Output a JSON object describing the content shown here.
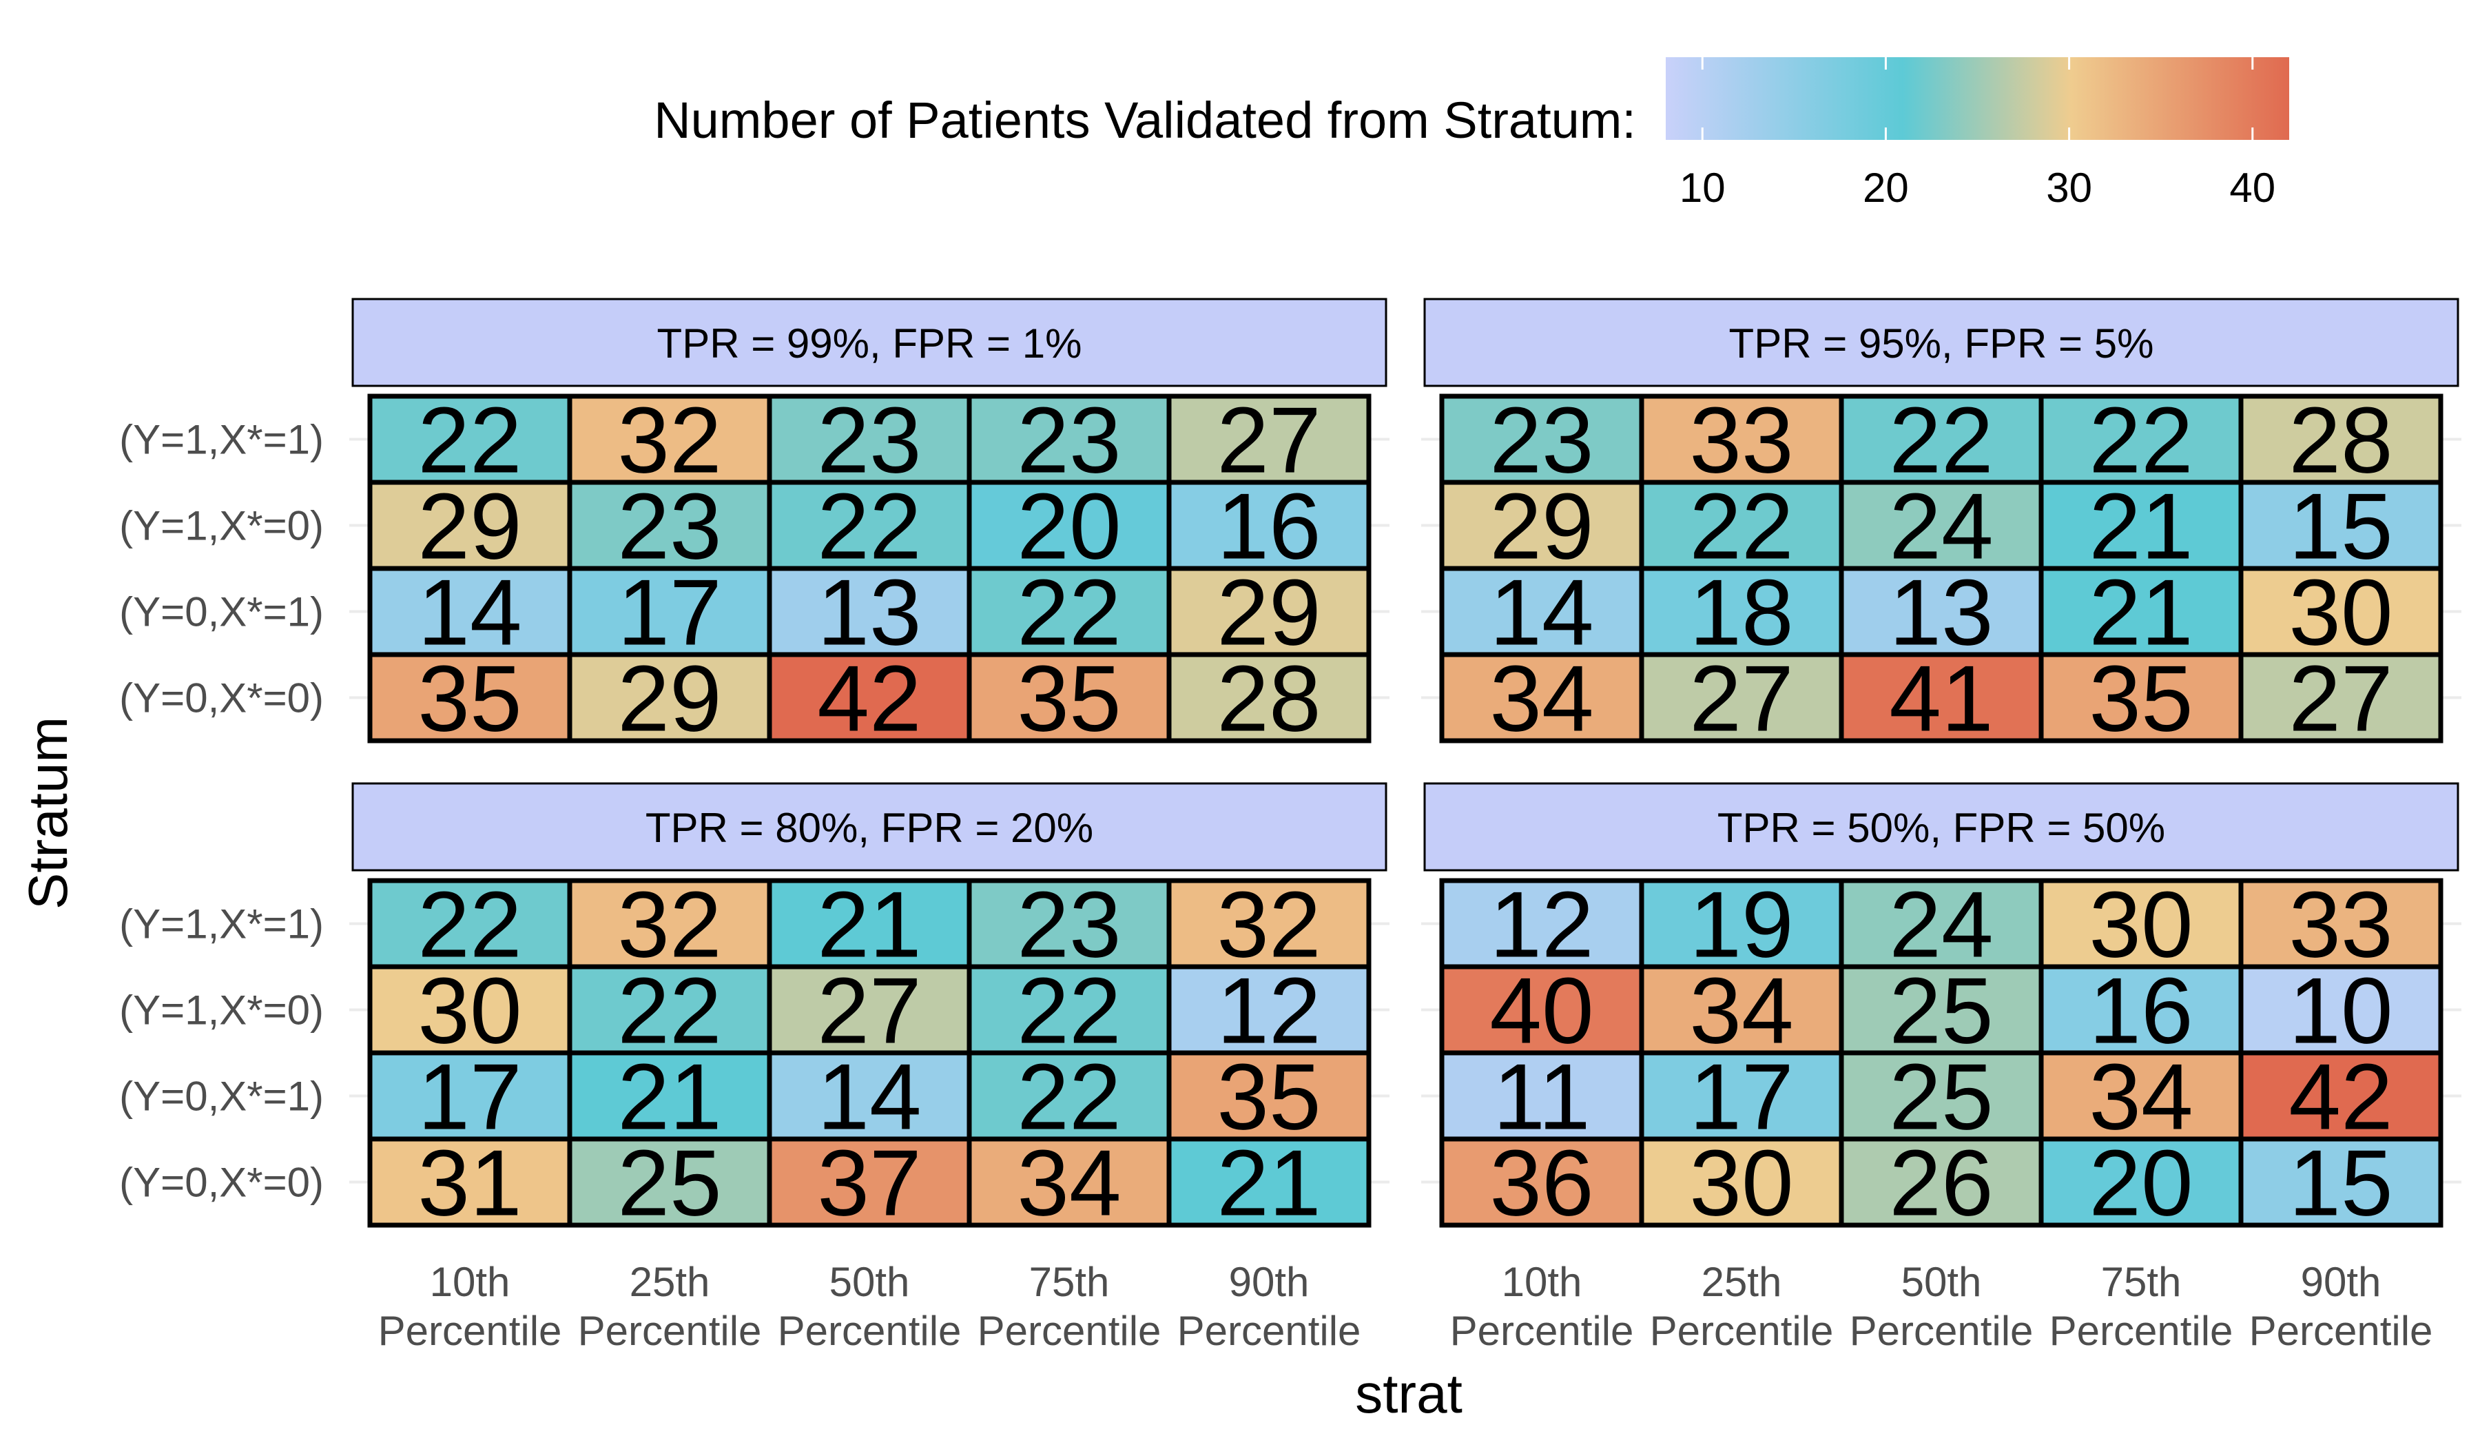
{
  "chart_data": {
    "type": "heatmap",
    "title": "",
    "xlabel": "strat",
    "ylabel": "Stratum",
    "x_categories": [
      {
        "line1": "10th",
        "line2": "Percentile"
      },
      {
        "line1": "25th",
        "line2": "Percentile"
      },
      {
        "line1": "50th",
        "line2": "Percentile"
      },
      {
        "line1": "75th",
        "line2": "Percentile"
      },
      {
        "line1": "90th",
        "line2": "Percentile"
      }
    ],
    "y_categories": [
      "(Y=1,X*=1)",
      "(Y=1,X*=0)",
      "(Y=0,X*=1)",
      "(Y=0,X*=0)"
    ],
    "legend": {
      "title": "Number of Patients Validated from Stratum:",
      "placement": "top",
      "range": [
        8,
        42
      ],
      "ticks": [
        10,
        20,
        30,
        40
      ],
      "colors": [
        "#c9d1fa",
        "#5dcad6",
        "#efcc8f",
        "#e06a50"
      ]
    },
    "panels": [
      {
        "title": "TPR = 99%, FPR = 1%",
        "values": [
          [
            22,
            32,
            23,
            23,
            27
          ],
          [
            29,
            23,
            22,
            20,
            16
          ],
          [
            14,
            17,
            13,
            22,
            29
          ],
          [
            35,
            29,
            42,
            35,
            28
          ]
        ]
      },
      {
        "title": "TPR = 95%, FPR = 5%",
        "values": [
          [
            23,
            33,
            22,
            22,
            28
          ],
          [
            29,
            22,
            24,
            21,
            15
          ],
          [
            14,
            18,
            13,
            21,
            30
          ],
          [
            34,
            27,
            41,
            35,
            27
          ]
        ]
      },
      {
        "title": "TPR = 80%, FPR = 20%",
        "values": [
          [
            22,
            32,
            21,
            23,
            32
          ],
          [
            30,
            22,
            27,
            22,
            12
          ],
          [
            17,
            21,
            14,
            22,
            35
          ],
          [
            31,
            25,
            37,
            34,
            21
          ]
        ]
      },
      {
        "title": "TPR = 50%, FPR = 50%",
        "values": [
          [
            12,
            19,
            24,
            30,
            33
          ],
          [
            40,
            34,
            25,
            16,
            10
          ],
          [
            11,
            17,
            25,
            34,
            42
          ],
          [
            36,
            30,
            26,
            20,
            15
          ]
        ]
      }
    ]
  }
}
